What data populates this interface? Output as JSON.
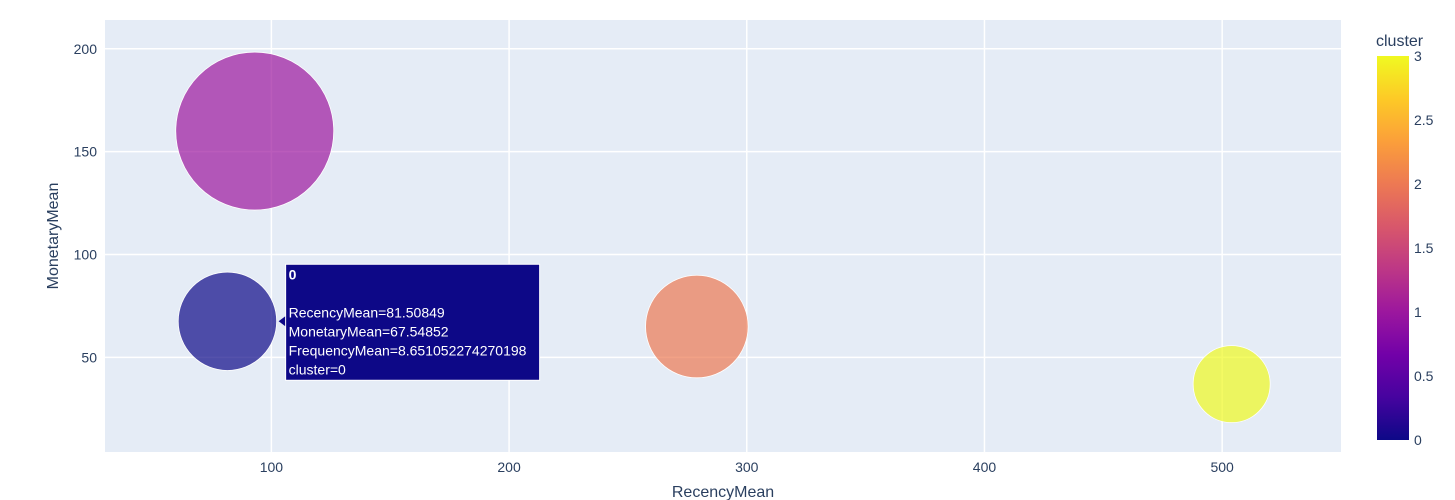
{
  "chart_data": {
    "type": "scatter",
    "title": "",
    "xlabel": "RecencyMean",
    "ylabel": "MonetaryMean",
    "xlim": [
      30,
      550
    ],
    "ylim": [
      4,
      214
    ],
    "xticks": [
      100,
      200,
      300,
      400,
      500
    ],
    "yticks": [
      50,
      100,
      150,
      200
    ],
    "grid": true,
    "size_field": "FrequencyMean",
    "points": [
      {
        "cluster": 0,
        "x": 81.50849,
        "y": 67.54852,
        "size": 8.651052274270198,
        "color": "#0d0887"
      },
      {
        "cluster": 1,
        "x": 93,
        "y": 160,
        "size": 22.3,
        "color": "#9c179e"
      },
      {
        "cluster": 2,
        "x": 279,
        "y": 65,
        "size": 9.4,
        "color": "#ed7953"
      },
      {
        "cluster": 3,
        "x": 504,
        "y": 37,
        "size": 5.3,
        "color": "#f0f921"
      }
    ],
    "colorbar": {
      "title": "cluster",
      "range": [
        0,
        3
      ],
      "ticks": [
        "0",
        "0.5",
        "1",
        "1.5",
        "2",
        "2.5",
        "3"
      ],
      "scale": [
        "#0d0887",
        "#46039f",
        "#7201a8",
        "#9c179e",
        "#bd3786",
        "#d8576b",
        "#ed7953",
        "#fb9f3a",
        "#fdca26",
        "#f0f921"
      ]
    },
    "tooltip": {
      "title": "0",
      "lines": [
        "RecencyMean=81.50849",
        "MonetaryMean=67.54852",
        "FrequencyMean=8.651052274270198",
        "cluster=0"
      ],
      "bg": "#0d0887"
    }
  }
}
